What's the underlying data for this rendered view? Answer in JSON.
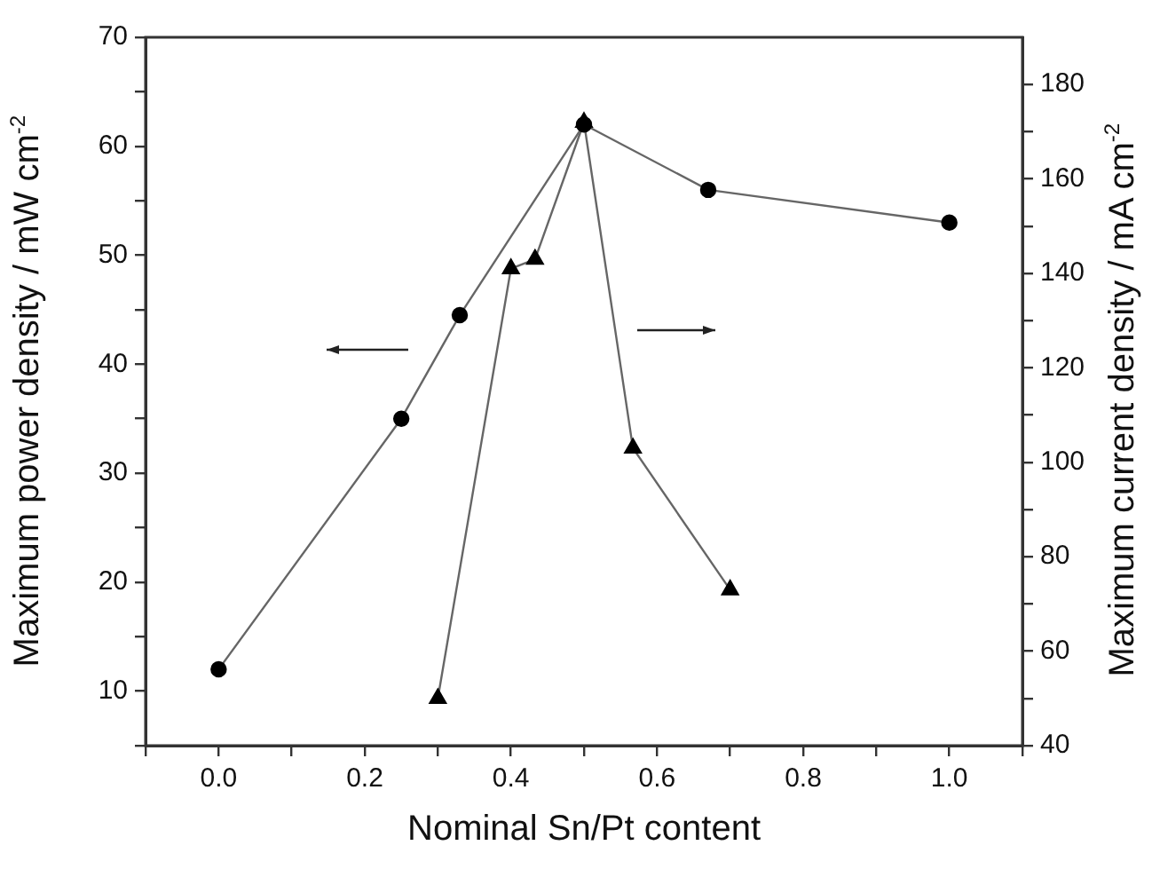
{
  "chart_data": {
    "type": "line",
    "xlabel": "Nominal Sn/Pt content",
    "ylabel": "Maximum power density / mW cm$^{-2}$",
    "y2label": "Maximum current density / mA cm$^{-2}$",
    "series": [
      {
        "color": "#000000",
        "marker": "circle",
        "x": [
          0,
          0.25,
          0.33,
          0.5,
          0.67,
          1.0
        ],
        "values": [
          12,
          35,
          44.5,
          62,
          56,
          53
        ]
      },
      {
        "axis": "y2",
        "color": "#000000",
        "marker": "triangle",
        "x": [
          0.3,
          0.4,
          0.433,
          0.5,
          0.567,
          0.7
        ],
        "values": [
          50,
          141,
          143,
          172,
          103,
          73
        ]
      }
    ],
    "xlim": [
      -0.1,
      1.1
    ],
    "xticks": [
      {
        "value": -0.1,
        "label": null
      },
      {
        "value": 0,
        "label": "0.0"
      },
      {
        "value": 0.1,
        "label": null
      },
      0.2,
      {
        "value": 0.3,
        "label": null
      },
      0.4,
      {
        "value": 0.5,
        "label": null
      },
      0.6,
      {
        "value": 0.7,
        "label": null
      },
      0.8,
      {
        "value": 0.9,
        "label": null
      },
      {
        "value": 1,
        "label": "1.0"
      },
      {
        "value": 1.1,
        "label": null
      }
    ],
    "ylim": [
      5,
      70
    ],
    "yticks": [
      {
        "value": 5,
        "label": null
      },
      10,
      {
        "value": 15,
        "label": null
      },
      20,
      {
        "value": 25,
        "label": null
      },
      30,
      {
        "value": 35,
        "label": null
      },
      40,
      {
        "value": 45,
        "label": null
      },
      50,
      {
        "value": 55,
        "label": null
      },
      60,
      {
        "value": 65,
        "label": null
      },
      70
    ],
    "y2lim": [
      40,
      190
    ],
    "y2ticks": [
      40,
      {
        "value": 50,
        "label": null
      },
      60,
      {
        "value": 70,
        "label": null
      },
      80,
      {
        "value": 90,
        "label": null
      },
      100,
      {
        "value": 110,
        "label": null
      },
      120,
      {
        "value": 130,
        "label": null
      },
      140,
      {
        "value": 150,
        "label": null
      },
      160,
      {
        "value": 170,
        "label": null
      },
      180
    ],
    "grid": false,
    "legend": false
  }
}
